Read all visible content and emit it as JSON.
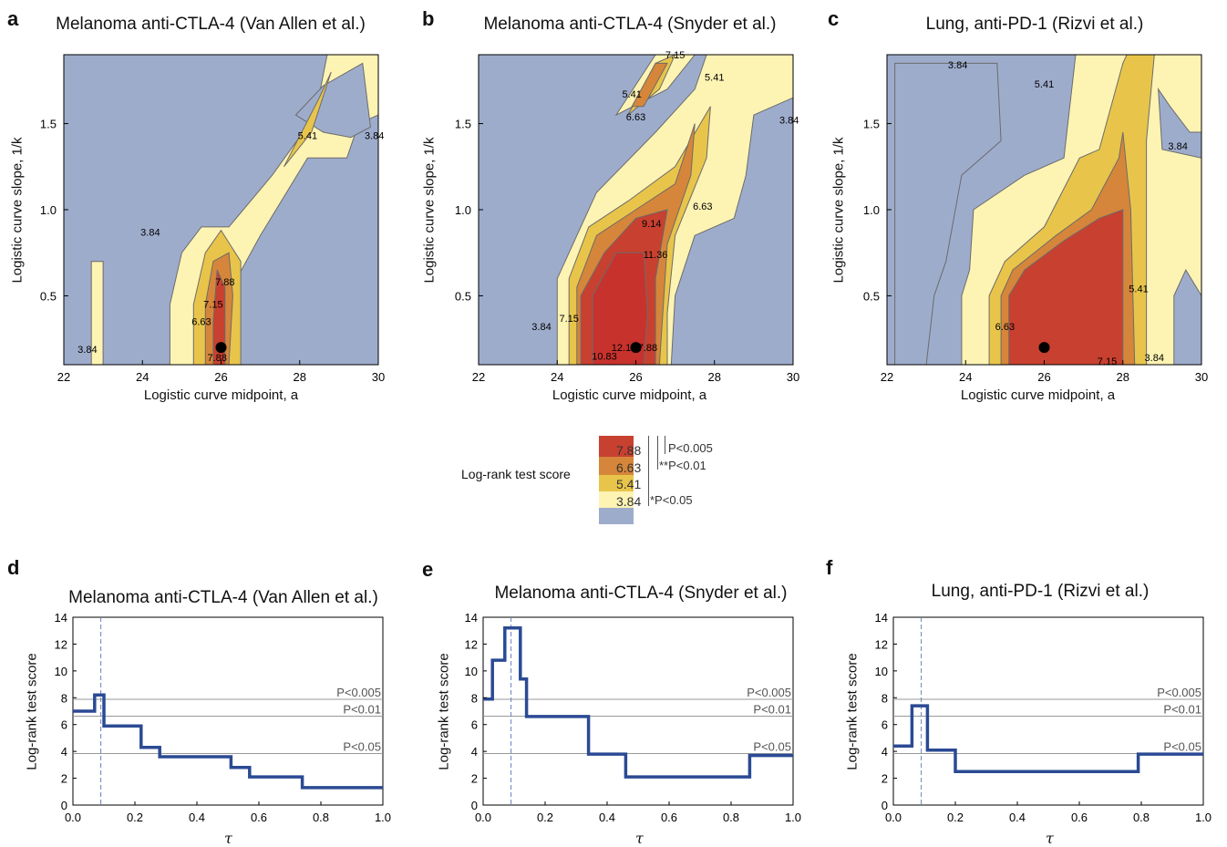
{
  "panel_letters": [
    "a",
    "b",
    "c",
    "d",
    "e",
    "f"
  ],
  "colors": {
    "below_384": "#9eaccc",
    "band_384_541": "#fdf3b3",
    "band_541_663": "#e8c54a",
    "band_663_788": "#d5863a",
    "band_788_plus": "#c8402f",
    "band_914_plus": "#c8322c",
    "step_line": "#2b4a94",
    "dot": "#000000"
  },
  "legend": {
    "title": "Log-rank test score",
    "values": [
      "7.88",
      "6.63",
      "5.41",
      "3.84"
    ],
    "significance": [
      "P<0.005",
      "**P<0.01",
      "*P<0.05"
    ]
  },
  "chart_data": [
    {
      "panel": "a",
      "type": "heatmap",
      "title": "Melanoma anti-CTLA-4 (Van Allen et al.)",
      "xlabel": "Logistic curve midpoint, a",
      "ylabel": "Logistic curve slope, 1/k",
      "xlim": [
        22,
        30
      ],
      "ylim": [
        0.1,
        1.9
      ],
      "xticks": [
        "22",
        "24",
        "26",
        "28",
        "30"
      ],
      "yticks": [
        "0.5",
        "1.0",
        "1.5"
      ],
      "contour_levels": [
        3.84,
        5.41,
        6.63,
        7.15,
        7.88
      ],
      "contour_labels": [
        "3.84",
        "3.84",
        "3.84",
        "5.41",
        "6.63",
        "7.15",
        "7.88",
        "7.88"
      ],
      "optimum": {
        "a": 26,
        "slope": 0.2
      }
    },
    {
      "panel": "b",
      "type": "heatmap",
      "title": "Melanoma anti-CTLA-4 (Snyder et al.)",
      "xlabel": "Logistic curve midpoint, a",
      "ylabel": "Logistic curve slope, 1/k",
      "xlim": [
        22,
        30
      ],
      "ylim": [
        0.1,
        1.9
      ],
      "xticks": [
        "22",
        "24",
        "26",
        "28",
        "30"
      ],
      "yticks": [
        "0.5",
        "1.0",
        "1.5"
      ],
      "contour_levels": [
        3.84,
        5.41,
        6.63,
        7.15,
        7.88,
        9.14,
        10.83,
        11.36,
        12.12
      ],
      "contour_labels": [
        "7.15",
        "5.41",
        "5.41",
        "6.63",
        "3.84",
        "6.63",
        "9.14",
        "11.36",
        "3.84",
        "7.15",
        "12.12",
        "10.83",
        "7.88"
      ],
      "optimum": {
        "a": 26,
        "slope": 0.2
      }
    },
    {
      "panel": "c",
      "type": "heatmap",
      "title": "Lung, anti-PD-1 (Rizvi et al.)",
      "xlabel": "Logistic curve midpoint, a",
      "ylabel": "Logistic curve slope, 1/k",
      "xlim": [
        22,
        30
      ],
      "ylim": [
        0.1,
        1.9
      ],
      "xticks": [
        "22",
        "24",
        "26",
        "28",
        "30"
      ],
      "yticks": [
        "0.5",
        "1.0",
        "1.5"
      ],
      "contour_levels": [
        3.84,
        5.41,
        6.63,
        7.15
      ],
      "contour_labels": [
        "3.84",
        "5.41",
        "3.84",
        "5.41",
        "6.63",
        "7.15",
        "3.84"
      ],
      "optimum": {
        "a": 26,
        "slope": 0.2
      }
    },
    {
      "panel": "d",
      "type": "line",
      "title": "Melanoma anti-CTLA-4 (Van Allen et al.)",
      "xlabel": "τ",
      "ylabel": "Log-rank test score",
      "xlim": [
        0,
        1
      ],
      "ylim": [
        0,
        14
      ],
      "xticks": [
        "0.0",
        "0.2",
        "0.4",
        "0.6",
        "0.8",
        "1.0"
      ],
      "yticks": [
        "0",
        "2",
        "4",
        "6",
        "8",
        "10",
        "12",
        "14"
      ],
      "step": {
        "x": [
          0,
          0.07,
          0.1,
          0.22,
          0.28,
          0.51,
          0.57,
          0.74,
          1.0
        ],
        "y": [
          7.0,
          8.2,
          5.9,
          4.3,
          3.6,
          2.8,
          2.1,
          1.3,
          1.3
        ]
      },
      "optimum_tau": 0.09,
      "thresholds": [
        {
          "y": 7.88,
          "label": "P<0.005"
        },
        {
          "y": 6.63,
          "label": "P<0.01"
        },
        {
          "y": 3.84,
          "label": "P<0.05"
        }
      ]
    },
    {
      "panel": "e",
      "type": "line",
      "title": "Melanoma anti-CTLA-4 (Snyder et al.)",
      "xlabel": "τ",
      "ylabel": "Log-rank test score",
      "xlim": [
        0,
        1
      ],
      "ylim": [
        0,
        14
      ],
      "xticks": [
        "0.0",
        "0.2",
        "0.4",
        "0.6",
        "0.8",
        "1.0"
      ],
      "yticks": [
        "0",
        "2",
        "4",
        "6",
        "8",
        "10",
        "12",
        "14"
      ],
      "step": {
        "x": [
          0,
          0.03,
          0.07,
          0.12,
          0.14,
          0.34,
          0.46,
          0.86,
          1.0
        ],
        "y": [
          7.9,
          10.8,
          13.2,
          9.4,
          6.6,
          3.8,
          2.1,
          3.7,
          3.7
        ]
      },
      "optimum_tau": 0.09,
      "thresholds": [
        {
          "y": 7.88,
          "label": "P<0.005"
        },
        {
          "y": 6.63,
          "label": "P<0.01"
        },
        {
          "y": 3.84,
          "label": "P<0.05"
        }
      ]
    },
    {
      "panel": "f",
      "type": "line",
      "title": "Lung, anti-PD-1 (Rizvi et al.)",
      "xlabel": "τ",
      "ylabel": "Log-rank test score",
      "xlim": [
        0,
        1
      ],
      "ylim": [
        0,
        14
      ],
      "xticks": [
        "0.0",
        "0.2",
        "0.4",
        "0.6",
        "0.8",
        "1.0"
      ],
      "yticks": [
        "0",
        "2",
        "4",
        "6",
        "8",
        "10",
        "12",
        "14"
      ],
      "step": {
        "x": [
          0,
          0.06,
          0.11,
          0.2,
          0.79,
          1.0
        ],
        "y": [
          4.4,
          7.4,
          4.1,
          2.5,
          3.8,
          3.8
        ]
      },
      "optimum_tau": 0.09,
      "thresholds": [
        {
          "y": 7.88,
          "label": "P<0.005"
        },
        {
          "y": 6.63,
          "label": "P<0.01"
        },
        {
          "y": 3.84,
          "label": "P<0.05"
        }
      ]
    }
  ]
}
